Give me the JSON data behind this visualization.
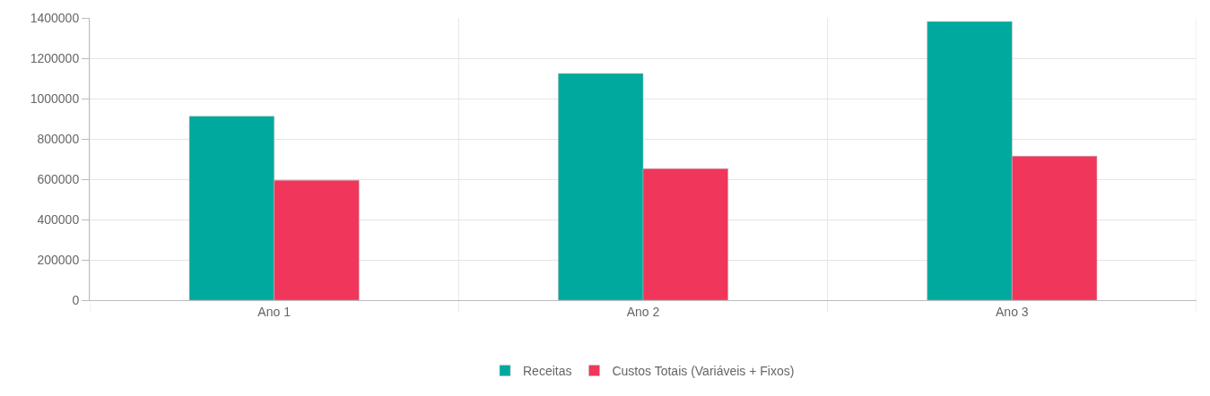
{
  "chart_data": {
    "type": "bar",
    "categories": [
      "Ano 1",
      "Ano 2",
      "Ano 3"
    ],
    "series": [
      {
        "name": "Receitas",
        "color": "#00a99d",
        "values": [
          912000,
          1124000,
          1382000
        ]
      },
      {
        "name": "Custos Totais (Variáveis + Fixos)",
        "color": "#f0365a",
        "values": [
          595000,
          652000,
          714000
        ]
      }
    ],
    "ylim": [
      0,
      1400000
    ],
    "yticks": [
      0,
      200000,
      400000,
      600000,
      800000,
      1000000,
      1200000,
      1400000
    ],
    "grid": true,
    "legend": "bottom"
  }
}
